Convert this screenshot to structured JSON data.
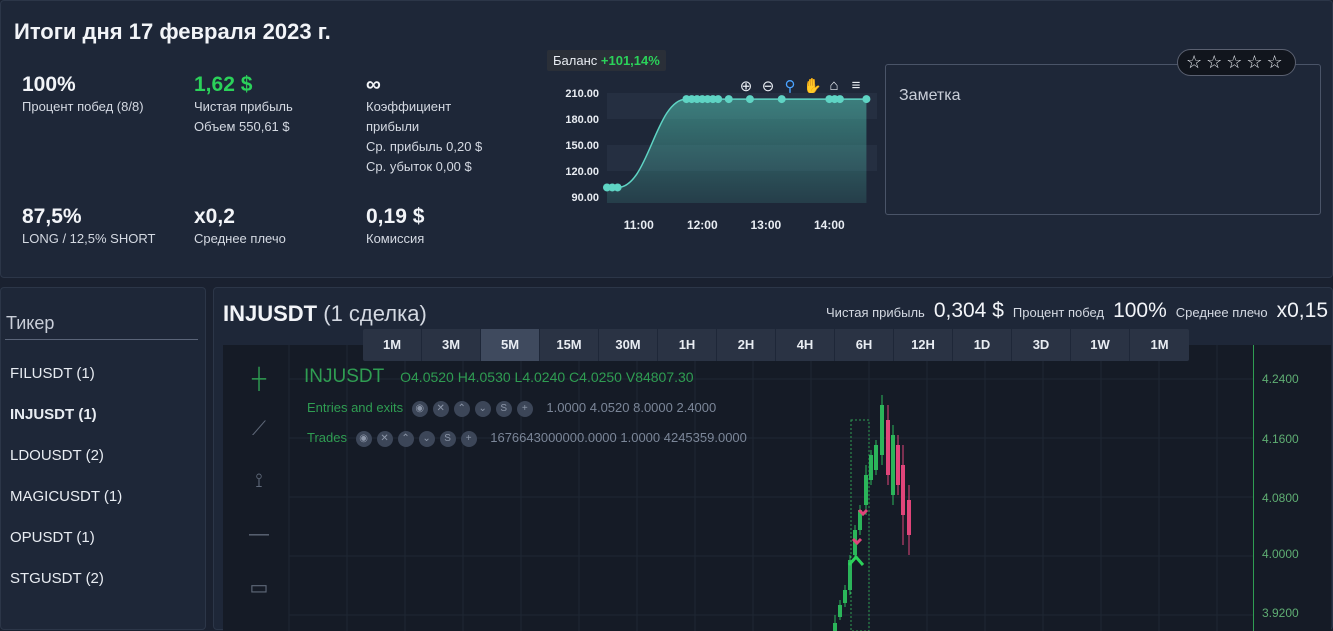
{
  "summary": {
    "title": "Итоги дня 17 февраля 2023 г.",
    "win_pct": "100%",
    "win_pct_label": "Процент побед (8/8)",
    "net_profit": "1,62 $",
    "net_profit_label": "Чистая прибыль",
    "volume_label": "Объем 550,61 $",
    "profit_factor": "∞",
    "profit_factor_label_1": "Коэффициент",
    "profit_factor_label_2": "прибыли",
    "avg_profit_label": "Ср. прибыль 0,20 $",
    "avg_loss_label": "Ср. убыток 0,00 $",
    "long_pct": "87,5%",
    "long_short_label": "LONG / 12,5% SHORT",
    "leverage": "x0,2",
    "leverage_label": "Среднее плечо",
    "commission": "0,19 $",
    "commission_label": "Комиссия"
  },
  "balance": {
    "label": "Баланс",
    "pct": "+101,14%",
    "toolbar_icons": [
      "zoom-in-icon",
      "zoom-out-icon",
      "magnifier-icon",
      "pan-hand-icon",
      "home-icon",
      "menu-icon"
    ]
  },
  "chart_data": {
    "type": "area",
    "title": "",
    "x": [
      "10:30",
      "10:35",
      "10:40",
      "11:45",
      "11:50",
      "11:55",
      "12:00",
      "12:05",
      "12:10",
      "12:15",
      "12:25",
      "12:45",
      "13:15",
      "14:00",
      "14:05",
      "14:10",
      "14:35"
    ],
    "series": [
      {
        "values": [
          101,
          101,
          101,
          203,
          203,
          203,
          203,
          203,
          203,
          203,
          203,
          203,
          203,
          203,
          203,
          203,
          203
        ]
      }
    ],
    "ylim": [
      90,
      210
    ],
    "yticks": [
      "210.00",
      "180.00",
      "150.00",
      "120.00",
      "90.00"
    ],
    "xticks": [
      "11:00",
      "12:00",
      "13:00",
      "14:00"
    ],
    "colors": {
      "fill": "#4fbfae",
      "line": "#5fd4c4"
    }
  },
  "note": {
    "label": "Заметка",
    "stars": "☆☆☆☆☆"
  },
  "tickers": {
    "header": "Тикер",
    "items": [
      "FILUSDT (1)",
      "INJUSDT (1)",
      "LDOUSDT (2)",
      "MAGICUSDT (1)",
      "OPUSDT (1)",
      "STGUSDT (2)"
    ],
    "active_index": 1
  },
  "main": {
    "symbol": "INJUSDT",
    "deals": "(1 сделка)",
    "net_profit_label": "Чистая прибыль",
    "net_profit": "0,304 $",
    "win_label": "Процент побед",
    "win": "100%",
    "leverage_label": "Среднее плечо",
    "leverage": "x0,15",
    "timeframes": [
      "1M",
      "3M",
      "5M",
      "15M",
      "30M",
      "1H",
      "2H",
      "4H",
      "6H",
      "12H",
      "1D",
      "3D",
      "1W",
      "1M"
    ],
    "active_timeframe": 2
  },
  "candle_chart": {
    "symbol": "INJUSDT",
    "ohlc": "O4.0520 H4.0530 L4.0240 C4.0250 V84807.30",
    "entries_label": "Entries and exits",
    "entries_values": "1.0000   4.0520   8.0000   2.4000",
    "trades_label": "Trades",
    "trades_values": "1676643000000.0000   1.0000   4245359.0000",
    "prices": [
      "4.2400",
      "4.1600",
      "4.0800",
      "4.0000",
      "3.9200"
    ]
  }
}
